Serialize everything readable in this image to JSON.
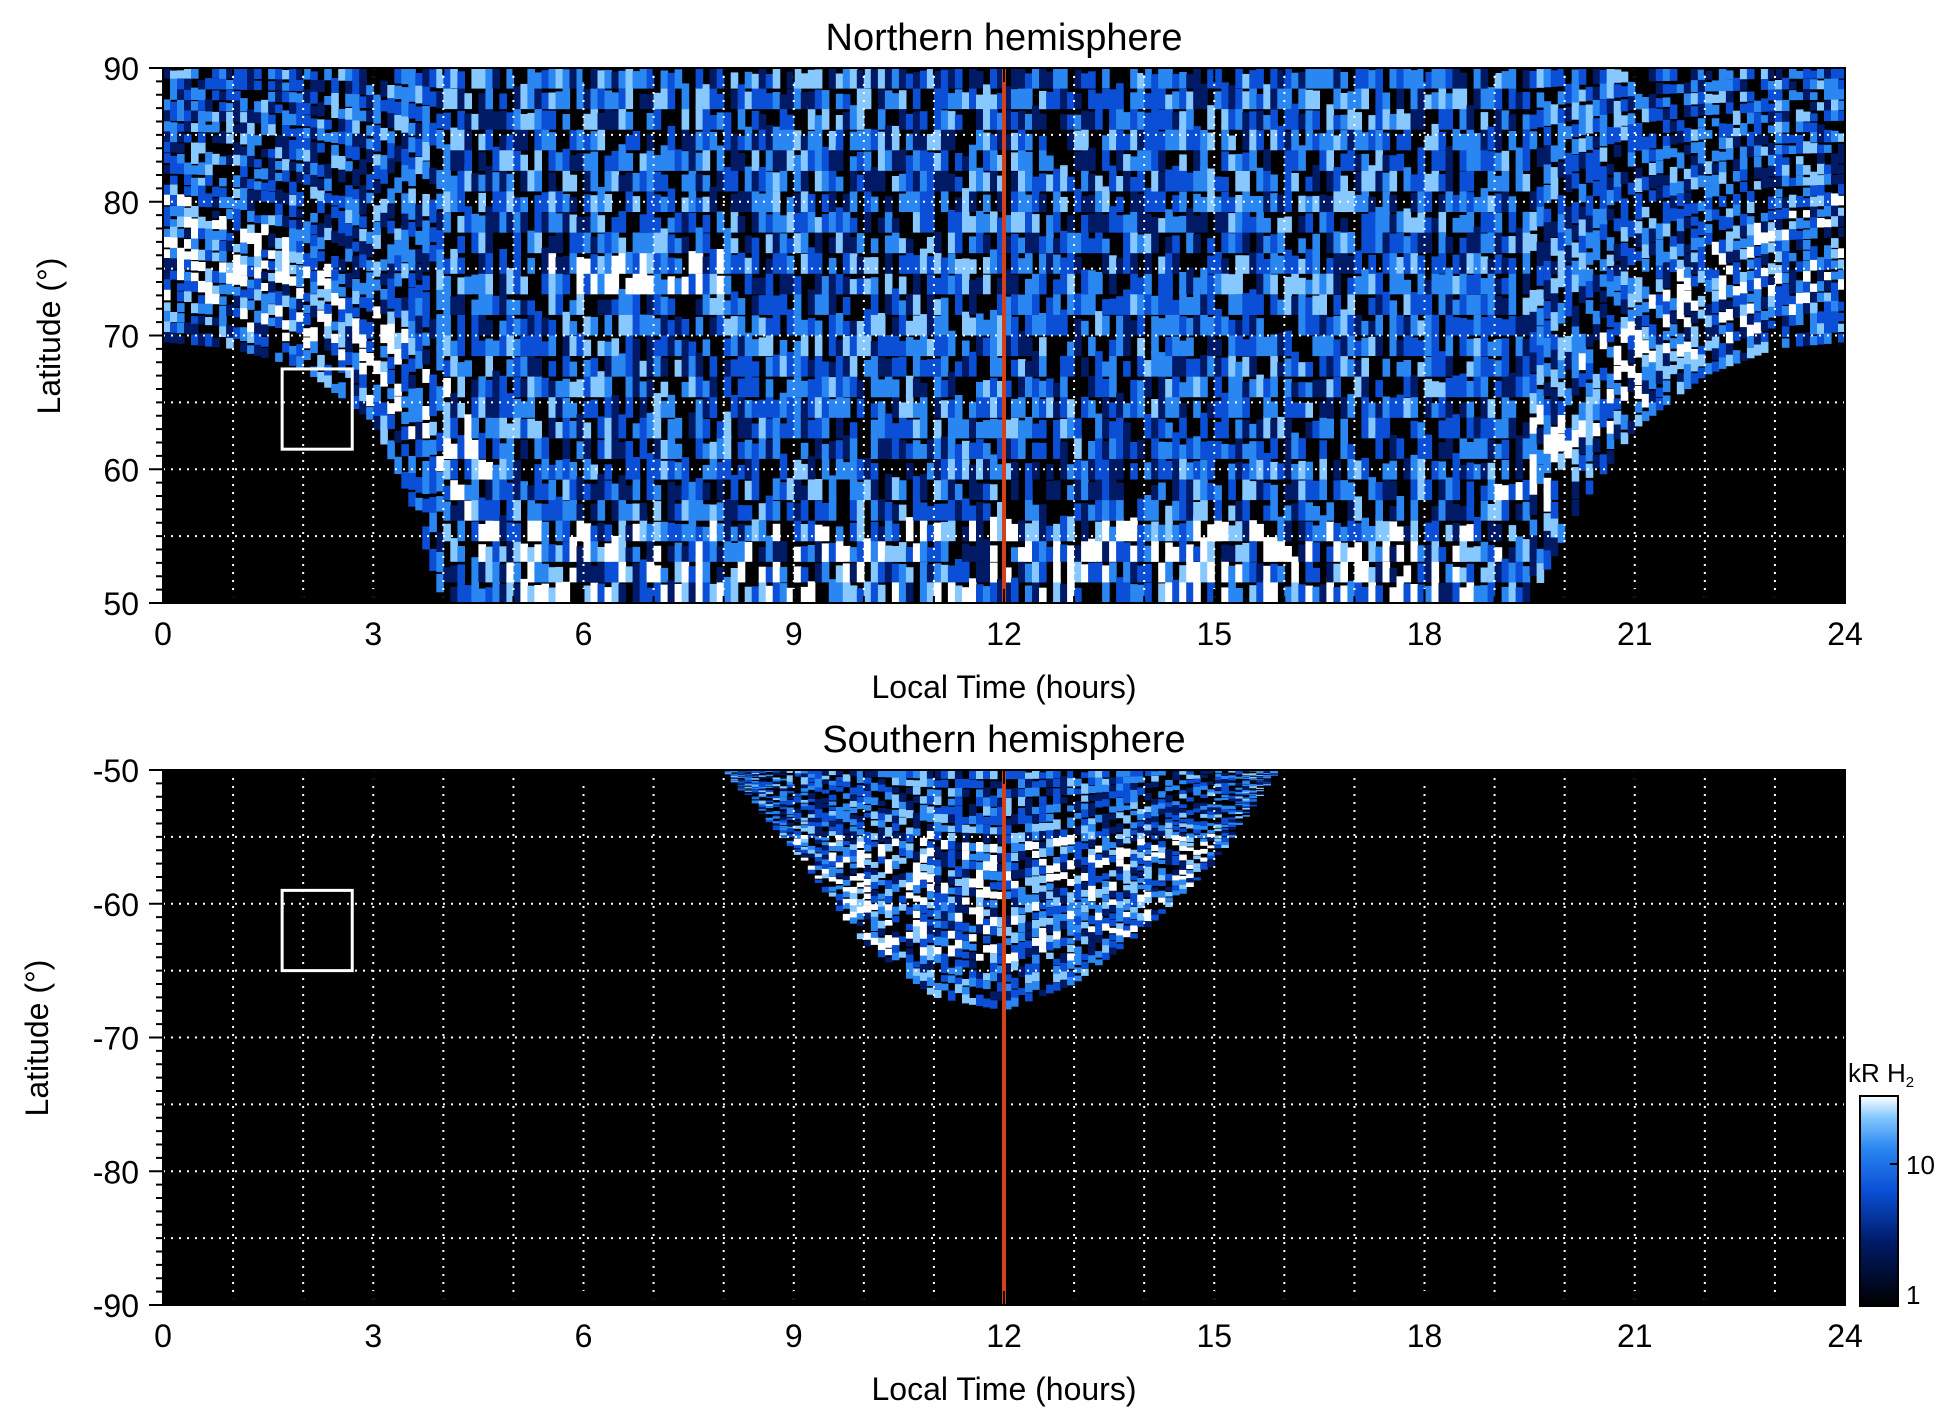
{
  "chart_data": [
    {
      "type": "heatmap",
      "title": "Northern hemisphere",
      "xlabel": "Local Time (hours)",
      "ylabel": "Latitude (°)",
      "xlim": [
        0,
        24
      ],
      "ylim": [
        50,
        90
      ],
      "xticks": [
        0,
        3,
        6,
        9,
        12,
        15,
        18,
        21,
        24
      ],
      "yticks": [
        50,
        60,
        70,
        80,
        90
      ],
      "grid": true,
      "noon_line_local_time": 12,
      "emission_region": {
        "description": "auroral emission coverage (kR H2)",
        "lower_boundary_lat_vs_lt": [
          [
            0,
            69.5
          ],
          [
            1,
            69
          ],
          [
            2,
            67.5
          ],
          [
            3,
            63.5
          ],
          [
            3.5,
            58
          ],
          [
            4,
            50
          ],
          [
            19.5,
            50
          ],
          [
            20.2,
            57
          ],
          [
            21,
            63
          ],
          [
            22,
            67
          ],
          [
            23,
            69
          ],
          [
            24,
            69.5
          ]
        ],
        "bright_arc_lat_vs_lt": [
          [
            0,
            77
          ],
          [
            2,
            73
          ],
          [
            4,
            64
          ],
          [
            5,
            52
          ],
          [
            18.8,
            52
          ],
          [
            20,
            64
          ],
          [
            22,
            73
          ],
          [
            24,
            77
          ]
        ],
        "bright_patch": {
          "lt_range": [
            5.5,
            8
          ],
          "lat_range": [
            72,
            75
          ]
        }
      },
      "highlight_box": {
        "lt_range": [
          1.7,
          2.7
        ],
        "lat_range": [
          61.5,
          67.5
        ]
      }
    },
    {
      "type": "heatmap",
      "title": "Southern hemisphere",
      "xlabel": "Local Time (hours)",
      "ylabel": "Latitude (°)",
      "xlim": [
        0,
        24
      ],
      "ylim": [
        -90,
        -50
      ],
      "xticks": [
        0,
        3,
        6,
        9,
        12,
        15,
        18,
        21,
        24
      ],
      "yticks": [
        -90,
        -80,
        -70,
        -60,
        -50
      ],
      "grid": true,
      "noon_line_local_time": 12,
      "emission_region": {
        "description": "auroral emission coverage (kR H2)",
        "coverage_boundary_lat_vs_lt": [
          [
            8,
            -50
          ],
          [
            9,
            -56
          ],
          [
            10,
            -63
          ],
          [
            11,
            -67
          ],
          [
            12,
            -68
          ],
          [
            13,
            -66
          ],
          [
            14,
            -62
          ],
          [
            15,
            -57
          ],
          [
            15.9,
            -50
          ]
        ],
        "bright_band": {
          "lt_range": [
            9,
            15
          ],
          "lat_range": [
            -65,
            -55
          ]
        }
      },
      "highlight_box": {
        "lt_range": [
          1.7,
          2.7
        ],
        "lat_range": [
          -65,
          -59
        ]
      }
    }
  ],
  "colorbar": {
    "label": "kR H",
    "label_subscript": "2",
    "scale": "log",
    "range": [
      1,
      20
    ],
    "tick_labels": [
      "10",
      "1"
    ],
    "colors": [
      "#000000",
      "#001a66",
      "#0a4fd6",
      "#2a86f0",
      "#86c8ff",
      "#ffffff"
    ]
  }
}
